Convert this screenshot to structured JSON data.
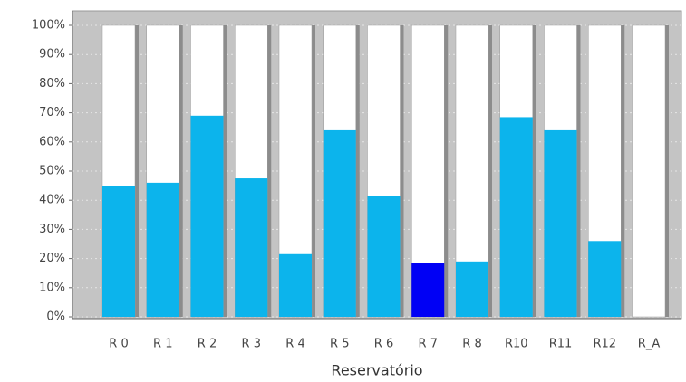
{
  "chart_data": {
    "type": "bar",
    "x_label": "Reservatório",
    "categories": [
      "R 0",
      "R 1",
      "R 2",
      "R 3",
      "R 4",
      "R 5",
      "R 6",
      "R 7",
      "R 8",
      "R10",
      "R11",
      "R12",
      "R_A"
    ],
    "values": [
      45,
      46,
      69,
      47.5,
      21.5,
      64,
      41.5,
      18.5,
      19,
      68.5,
      64,
      26,
      0
    ],
    "colors": [
      "#0cb4ec",
      "#0cb4ec",
      "#0cb4ec",
      "#0cb4ec",
      "#0cb4ec",
      "#0cb4ec",
      "#0cb4ec",
      "#0000f5",
      "#0cb4ec",
      "#0cb4ec",
      "#0cb4ec",
      "#0cb4ec",
      "#0cb4ec"
    ],
    "ylim": [
      0,
      100
    ],
    "yticks": [
      {
        "value": 0,
        "label": "0%"
      },
      {
        "value": 10,
        "label": "10%"
      },
      {
        "value": 20,
        "label": "20%"
      },
      {
        "value": 30,
        "label": "30%"
      },
      {
        "value": 40,
        "label": "40%"
      },
      {
        "value": 50,
        "label": "50%"
      },
      {
        "value": 60,
        "label": "60%"
      },
      {
        "value": 70,
        "label": "70%"
      },
      {
        "value": 80,
        "label": "80%"
      },
      {
        "value": 90,
        "label": "90%"
      },
      {
        "value": 100,
        "label": "100%"
      }
    ],
    "grid": true
  }
}
